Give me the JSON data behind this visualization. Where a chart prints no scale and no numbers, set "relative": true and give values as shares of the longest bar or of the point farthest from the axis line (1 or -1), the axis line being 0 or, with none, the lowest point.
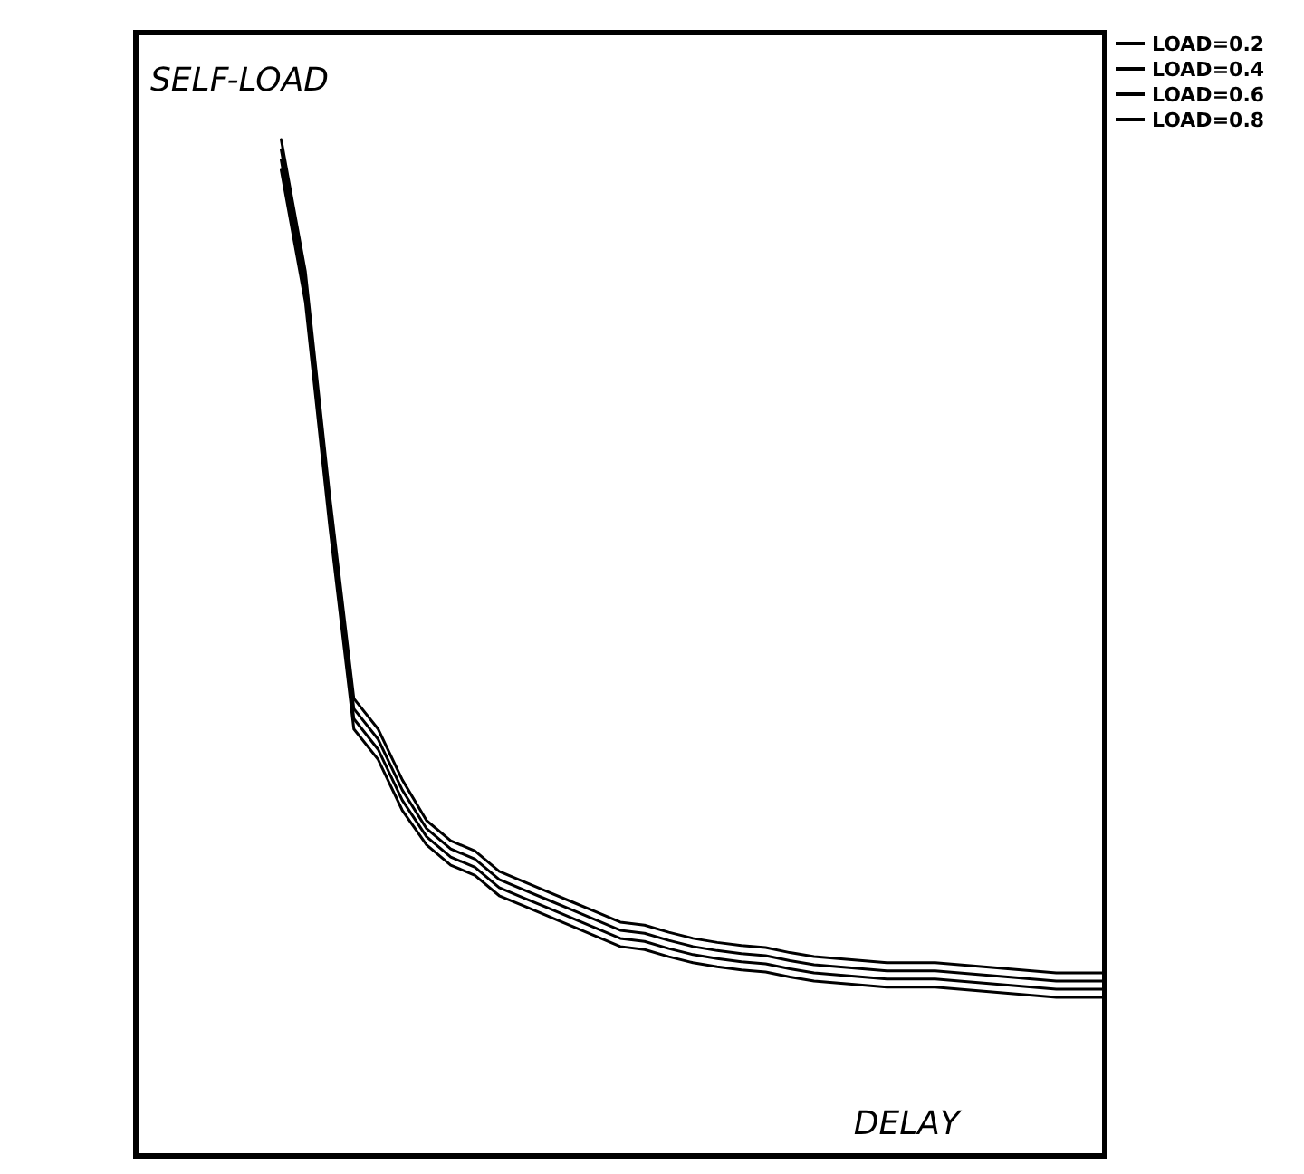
{
  "chart_data": {
    "type": "line",
    "relative": true,
    "xlabel": "DELAY",
    "ylabel": "SELF-LOAD",
    "legend": "top right",
    "line_style": "solid",
    "categories": [
      null,
      null,
      null,
      null,
      null,
      null,
      null,
      null,
      null,
      null,
      null,
      null,
      null,
      null,
      null,
      null,
      null,
      null,
      null,
      null,
      null,
      null,
      null,
      null,
      null,
      null,
      null,
      null,
      null,
      null,
      null,
      null,
      null,
      null,
      null,
      null,
      null,
      null,
      null,
      null,
      null
    ],
    "series": [
      {
        "name": "LOAD=0.2",
        "color": "#000000",
        "values": [
          null,
          null,
          null,
          null,
          null,
          null,
          1.0,
          0.87,
          0.65,
          0.45,
          0.42,
          0.37,
          0.33,
          0.31,
          0.3,
          0.28,
          0.27,
          0.26,
          0.25,
          0.24,
          0.23,
          0.227,
          0.22,
          0.214,
          0.21,
          0.207,
          0.205,
          0.2,
          0.196,
          0.194,
          0.192,
          0.19,
          0.19,
          0.19,
          0.188,
          0.186,
          0.184,
          0.182,
          0.18,
          0.18,
          0.18
        ]
      },
      {
        "name": "LOAD=0.4",
        "color": "#000000",
        "values": [
          null,
          null,
          null,
          null,
          null,
          null,
          0.99,
          0.86,
          0.64,
          0.44,
          0.41,
          0.36,
          0.322,
          0.302,
          0.292,
          0.272,
          0.262,
          0.252,
          0.242,
          0.232,
          0.222,
          0.219,
          0.212,
          0.206,
          0.202,
          0.199,
          0.197,
          0.192,
          0.188,
          0.186,
          0.184,
          0.182,
          0.182,
          0.182,
          0.18,
          0.178,
          0.176,
          0.174,
          0.172,
          0.172,
          0.172
        ]
      },
      {
        "name": "LOAD=0.6",
        "color": "#000000",
        "values": [
          null,
          null,
          null,
          null,
          null,
          null,
          0.98,
          0.85,
          0.63,
          0.43,
          0.4,
          0.35,
          0.314,
          0.294,
          0.284,
          0.264,
          0.254,
          0.244,
          0.234,
          0.224,
          0.214,
          0.211,
          0.204,
          0.198,
          0.194,
          0.191,
          0.189,
          0.184,
          0.18,
          0.178,
          0.176,
          0.174,
          0.174,
          0.174,
          0.172,
          0.17,
          0.168,
          0.166,
          0.164,
          0.164,
          0.164
        ]
      },
      {
        "name": "LOAD=0.8",
        "color": "#000000",
        "values": [
          null,
          null,
          null,
          null,
          null,
          null,
          0.97,
          0.84,
          0.62,
          0.42,
          0.39,
          0.34,
          0.306,
          0.286,
          0.276,
          0.256,
          0.246,
          0.236,
          0.226,
          0.216,
          0.206,
          0.203,
          0.196,
          0.19,
          0.186,
          0.183,
          0.181,
          0.176,
          0.172,
          0.17,
          0.168,
          0.166,
          0.166,
          0.166,
          0.164,
          0.162,
          0.16,
          0.158,
          0.156,
          0.156,
          0.156
        ]
      }
    ]
  }
}
